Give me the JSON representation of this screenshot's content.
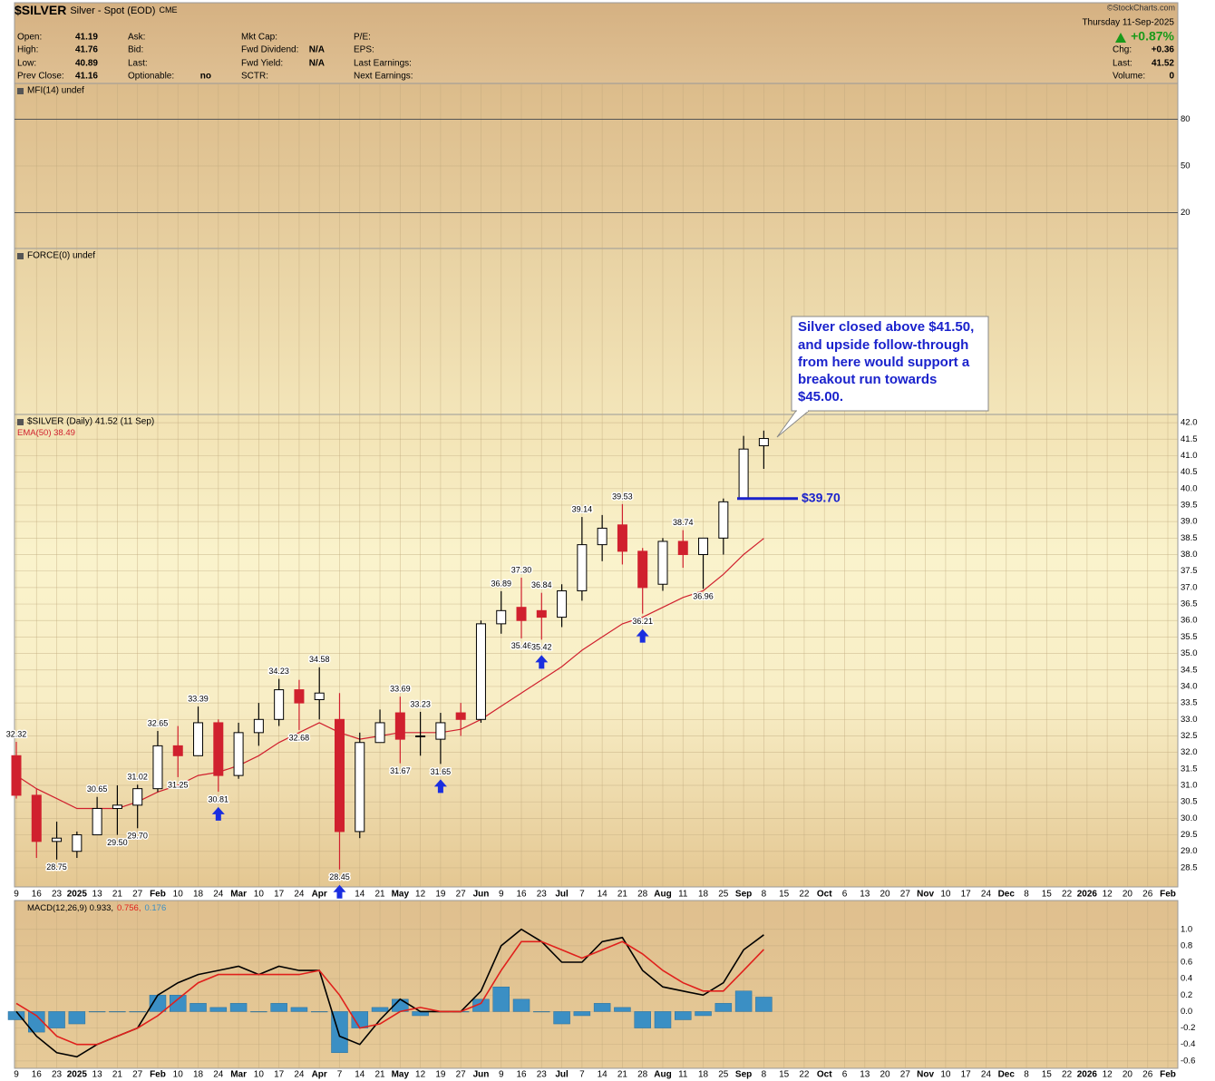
{
  "header": {
    "symbol": "$SILVER",
    "name": "Silver - Spot (EOD)",
    "exchange": "CME",
    "watermark": "©StockCharts.com",
    "date": "Thursday  11-Sep-2025",
    "change_pct": "+0.87%",
    "columns": [
      [
        {
          "label": "Open:",
          "value": 41.19
        },
        {
          "label": "High:",
          "value": 41.76
        },
        {
          "label": "Low:",
          "value": 40.89
        },
        {
          "label": "Prev Close:",
          "value": 41.16
        }
      ],
      [
        {
          "label": "Ask:"
        },
        {
          "label": "Bid:"
        },
        {
          "label": "Last:"
        },
        {
          "label": "Optionable:",
          "value": "no"
        }
      ],
      [
        {
          "label": "Mkt Cap:"
        },
        {
          "label": "Fwd Dividend:",
          "value": "N/A"
        },
        {
          "label": "Fwd Yield:",
          "value": "N/A"
        },
        {
          "label": "SCTR:"
        }
      ],
      [
        {
          "label": "P/E:"
        },
        {
          "label": "EPS:"
        },
        {
          "label": "Last Earnings:"
        },
        {
          "label": "Next Earnings:"
        }
      ]
    ],
    "right": [
      {
        "label": "Chg:",
        "value": "+0.36"
      },
      {
        "label": "Last:",
        "value": 41.52
      },
      {
        "label": "Volume:",
        "value": 0
      }
    ]
  },
  "chart_data": [
    {
      "type": "candlestick",
      "title": "$SILVER (Daily) 41.52 (11 Sep)",
      "categories": [
        "9",
        "16",
        "23",
        "2025",
        "13",
        "21",
        "27",
        "Feb",
        "10",
        "18",
        "24",
        "Mar",
        "10",
        "17",
        "24",
        "Apr",
        "7",
        "14",
        "21",
        "May",
        "12",
        "19",
        "27",
        "Jun",
        "9",
        "16",
        "23",
        "Jul",
        "7",
        "14",
        "21",
        "28",
        "Aug",
        "11",
        "18",
        "25",
        "Sep",
        "8",
        "15",
        "22",
        "Oct",
        "6",
        "13",
        "20",
        "27",
        "Nov",
        "10",
        "17",
        "24",
        "Dec",
        "8",
        "15",
        "22",
        "2026",
        "12",
        "20",
        "26",
        "Feb"
      ],
      "open": [
        31.9,
        30.7,
        29.3,
        29.0,
        29.5,
        30.3,
        30.4,
        30.9,
        32.2,
        31.9,
        32.9,
        31.3,
        32.6,
        33.0,
        33.9,
        33.6,
        33.0,
        29.6,
        32.3,
        33.2,
        32.5,
        32.4,
        33.2,
        33.0,
        35.9,
        36.4,
        36.3,
        36.1,
        36.9,
        38.3,
        38.9,
        38.1,
        37.1,
        38.4,
        38.0,
        38.5,
        39.7,
        41.3,
        null,
        null,
        null,
        null,
        null,
        null,
        null,
        null,
        null,
        null,
        null,
        null,
        null,
        null,
        null,
        null,
        null,
        null,
        null,
        null
      ],
      "high": [
        32.32,
        30.9,
        29.9,
        29.6,
        30.65,
        31.0,
        31.02,
        32.65,
        32.8,
        33.39,
        33.0,
        32.9,
        33.5,
        34.23,
        34.2,
        34.58,
        33.8,
        32.6,
        33.3,
        33.69,
        33.23,
        33.2,
        33.5,
        36.0,
        36.89,
        37.3,
        36.84,
        37.1,
        39.14,
        39.2,
        39.53,
        38.2,
        38.5,
        38.74,
        38.4,
        39.7,
        41.6,
        41.76,
        null,
        null,
        null,
        null,
        null,
        null,
        null,
        null,
        null,
        null,
        null,
        null,
        null,
        null,
        null,
        null,
        null,
        null,
        null,
        null
      ],
      "low": [
        30.6,
        28.8,
        28.75,
        28.8,
        29.5,
        29.5,
        29.7,
        30.8,
        31.25,
        31.9,
        30.81,
        31.2,
        32.2,
        32.8,
        32.68,
        33.0,
        28.45,
        29.4,
        32.3,
        31.67,
        31.9,
        31.65,
        32.5,
        32.9,
        35.6,
        35.46,
        35.42,
        35.8,
        36.6,
        37.8,
        37.7,
        36.21,
        36.9,
        37.6,
        36.96,
        38.0,
        39.7,
        40.6,
        null,
        null,
        null,
        null,
        null,
        null,
        null,
        null,
        null,
        null,
        null,
        null,
        null,
        null,
        null,
        null,
        null,
        null,
        null,
        null
      ],
      "close": [
        30.7,
        29.3,
        29.4,
        29.5,
        30.3,
        30.4,
        30.9,
        32.2,
        31.9,
        32.9,
        31.3,
        32.6,
        33.0,
        33.9,
        33.5,
        33.8,
        29.6,
        32.3,
        32.9,
        32.4,
        32.5,
        32.9,
        33.0,
        35.9,
        36.3,
        36.0,
        36.1,
        36.9,
        38.3,
        38.8,
        38.1,
        37.0,
        38.4,
        38.0,
        38.5,
        39.6,
        41.2,
        41.52,
        null,
        null,
        null,
        null,
        null,
        null,
        null,
        null,
        null,
        null,
        null,
        null,
        null,
        null,
        null,
        null,
        null,
        null,
        null,
        null
      ],
      "up_color": "#000000",
      "down_color": "#d0202e",
      "series": [
        {
          "name": "EMA(50) 38.49",
          "color": "#d0202e",
          "values": [
            31.3,
            30.9,
            30.6,
            30.3,
            30.3,
            30.3,
            30.5,
            30.8,
            31.0,
            31.3,
            31.4,
            31.6,
            31.9,
            32.3,
            32.6,
            32.9,
            32.6,
            32.4,
            32.5,
            32.6,
            32.6,
            32.6,
            32.7,
            33.0,
            33.4,
            33.8,
            34.2,
            34.6,
            35.1,
            35.5,
            35.9,
            36.1,
            36.4,
            36.7,
            36.9,
            37.4,
            38.0,
            38.49,
            null,
            null,
            null,
            null,
            null,
            null,
            null,
            null,
            null,
            null,
            null,
            null,
            null,
            null,
            null,
            null,
            null,
            null,
            null,
            null
          ]
        }
      ],
      "annotations": [
        {
          "x": 0,
          "value": 32.32
        },
        {
          "x": 2,
          "value": 28.75
        },
        {
          "x": 4,
          "value": 30.65
        },
        {
          "x": 5,
          "value": 29.5,
          "label": "29.50"
        },
        {
          "x": 6,
          "value": 31.02
        },
        {
          "x": 6,
          "value": 29.7,
          "label": "29.70"
        },
        {
          "x": 7,
          "value": 32.65
        },
        {
          "x": 8,
          "value": 31.25
        },
        {
          "x": 9,
          "value": 33.39
        },
        {
          "x": 10,
          "value": 30.81,
          "arrow": true
        },
        {
          "x": 13,
          "value": 34.23
        },
        {
          "x": 14,
          "value": 32.68
        },
        {
          "x": 15,
          "value": 34.58
        },
        {
          "x": 16,
          "value": 28.45,
          "arrow": true
        },
        {
          "x": 19,
          "value": 33.69
        },
        {
          "x": 19,
          "value": 31.67
        },
        {
          "x": 20,
          "value": 33.23
        },
        {
          "x": 21,
          "value": 31.65,
          "arrow": true
        },
        {
          "x": 24,
          "value": 36.89
        },
        {
          "x": 25,
          "value": 37.3,
          "label": "37.30"
        },
        {
          "x": 25,
          "value": 35.46
        },
        {
          "x": 26,
          "value": 36.84
        },
        {
          "x": 26,
          "value": 35.42,
          "arrow": true
        },
        {
          "x": 28,
          "value": 39.14
        },
        {
          "x": 30,
          "value": 39.53
        },
        {
          "x": 31,
          "value": 36.21,
          "arrow": true
        },
        {
          "x": 33,
          "value": 38.74
        },
        {
          "x": 34,
          "value": 36.96
        }
      ],
      "level": {
        "value": 39.7,
        "label": "$39.70"
      },
      "callout": {
        "lines": [
          "Silver closed above $41.50,",
          "and upside follow-through",
          "from here would support a",
          "breakout run towards",
          "$45.00."
        ]
      },
      "ylim": [
        27.92,
        42.25
      ],
      "yticks": [
        28.5,
        {
          "value": 29,
          "label": "29.0"
        },
        29.5,
        {
          "value": 30,
          "label": "30.0"
        },
        30.5,
        {
          "value": 31,
          "label": "31.0"
        },
        31.5,
        {
          "value": 32,
          "label": "32.0"
        },
        32.5,
        {
          "value": 33,
          "label": "33.0"
        },
        33.5,
        {
          "value": 34,
          "label": "34.0"
        },
        34.5,
        {
          "value": 35,
          "label": "35.0"
        },
        35.5,
        {
          "value": 36,
          "label": "36.0"
        },
        36.5,
        {
          "value": 37,
          "label": "37.0"
        },
        37.5,
        {
          "value": 38,
          "label": "38.0"
        },
        38.5,
        {
          "value": 39,
          "label": "39.0"
        },
        39.5,
        {
          "value": 40,
          "label": "40.0"
        },
        40.5,
        {
          "value": 41,
          "label": "41.0"
        },
        41.5,
        {
          "value": 42,
          "label": "42.0"
        }
      ],
      "grid": true
    },
    {
      "type": "line",
      "title": "MFI(14) undef",
      "ylim": [
        -3,
        103
      ],
      "yticks": [
        80,
        50,
        20
      ],
      "signal_lines": [
        80,
        20
      ],
      "grid": true
    },
    {
      "type": "line",
      "title": "FORCE(0) undef",
      "grid": true
    },
    {
      "type": "line",
      "series": [
        {
          "name": "MACD(12,26,9) 0.933,",
          "color": "#000000",
          "values": [
            0.0,
            -0.3,
            -0.5,
            -0.55,
            -0.4,
            -0.3,
            -0.2,
            0.2,
            0.35,
            0.45,
            0.5,
            0.55,
            0.45,
            0.55,
            0.5,
            0.5,
            -0.3,
            -0.4,
            -0.1,
            0.15,
            0.0,
            0.0,
            0.0,
            0.25,
            0.8,
            1.0,
            0.85,
            0.6,
            0.6,
            0.85,
            0.9,
            0.5,
            0.3,
            0.25,
            0.2,
            0.35,
            0.75,
            0.933,
            null,
            null,
            null,
            null,
            null,
            null,
            null,
            null,
            null,
            null,
            null,
            null,
            null,
            null,
            null,
            null,
            null,
            null,
            null,
            null
          ]
        },
        {
          "name": "0.756,",
          "color": "#e0201c",
          "values": [
            0.1,
            -0.05,
            -0.3,
            -0.4,
            -0.4,
            -0.3,
            -0.2,
            -0.05,
            0.15,
            0.35,
            0.45,
            0.45,
            0.45,
            0.45,
            0.45,
            0.5,
            0.2,
            -0.2,
            -0.15,
            0.0,
            0.05,
            0.0,
            0.0,
            0.1,
            0.5,
            0.85,
            0.85,
            0.75,
            0.65,
            0.75,
            0.85,
            0.7,
            0.5,
            0.35,
            0.25,
            0.25,
            0.5,
            0.756,
            null,
            null,
            null,
            null,
            null,
            null,
            null,
            null,
            null,
            null,
            null,
            null,
            null,
            null,
            null,
            null,
            null,
            null,
            null,
            null
          ]
        },
        {
          "name": "0.176",
          "color": "#3b8fc4",
          "type": "bar",
          "values": [
            -0.1,
            -0.25,
            -0.2,
            -0.15,
            0.0,
            0.0,
            0.0,
            0.2,
            0.2,
            0.1,
            0.05,
            0.1,
            0.0,
            0.1,
            0.05,
            0.0,
            -0.5,
            -0.2,
            0.05,
            0.15,
            -0.05,
            0.0,
            0.0,
            0.15,
            0.3,
            0.15,
            0.0,
            -0.15,
            -0.05,
            0.1,
            0.05,
            -0.2,
            -0.2,
            -0.1,
            -0.05,
            0.1,
            0.25,
            0.176,
            null,
            null,
            null,
            null,
            null,
            null,
            null,
            null,
            null,
            null,
            null,
            null,
            null,
            null,
            null,
            null,
            null,
            null,
            null,
            null
          ]
        }
      ],
      "ylim": [
        -0.69,
        1.35
      ],
      "yticks": [
        {
          "value": 1,
          "label": "1.0"
        },
        0.8,
        0.6,
        0.4,
        0.2,
        {
          "value": 0,
          "label": "0.0"
        },
        -0.2,
        -0.4,
        -0.6
      ],
      "grid": true
    }
  ]
}
